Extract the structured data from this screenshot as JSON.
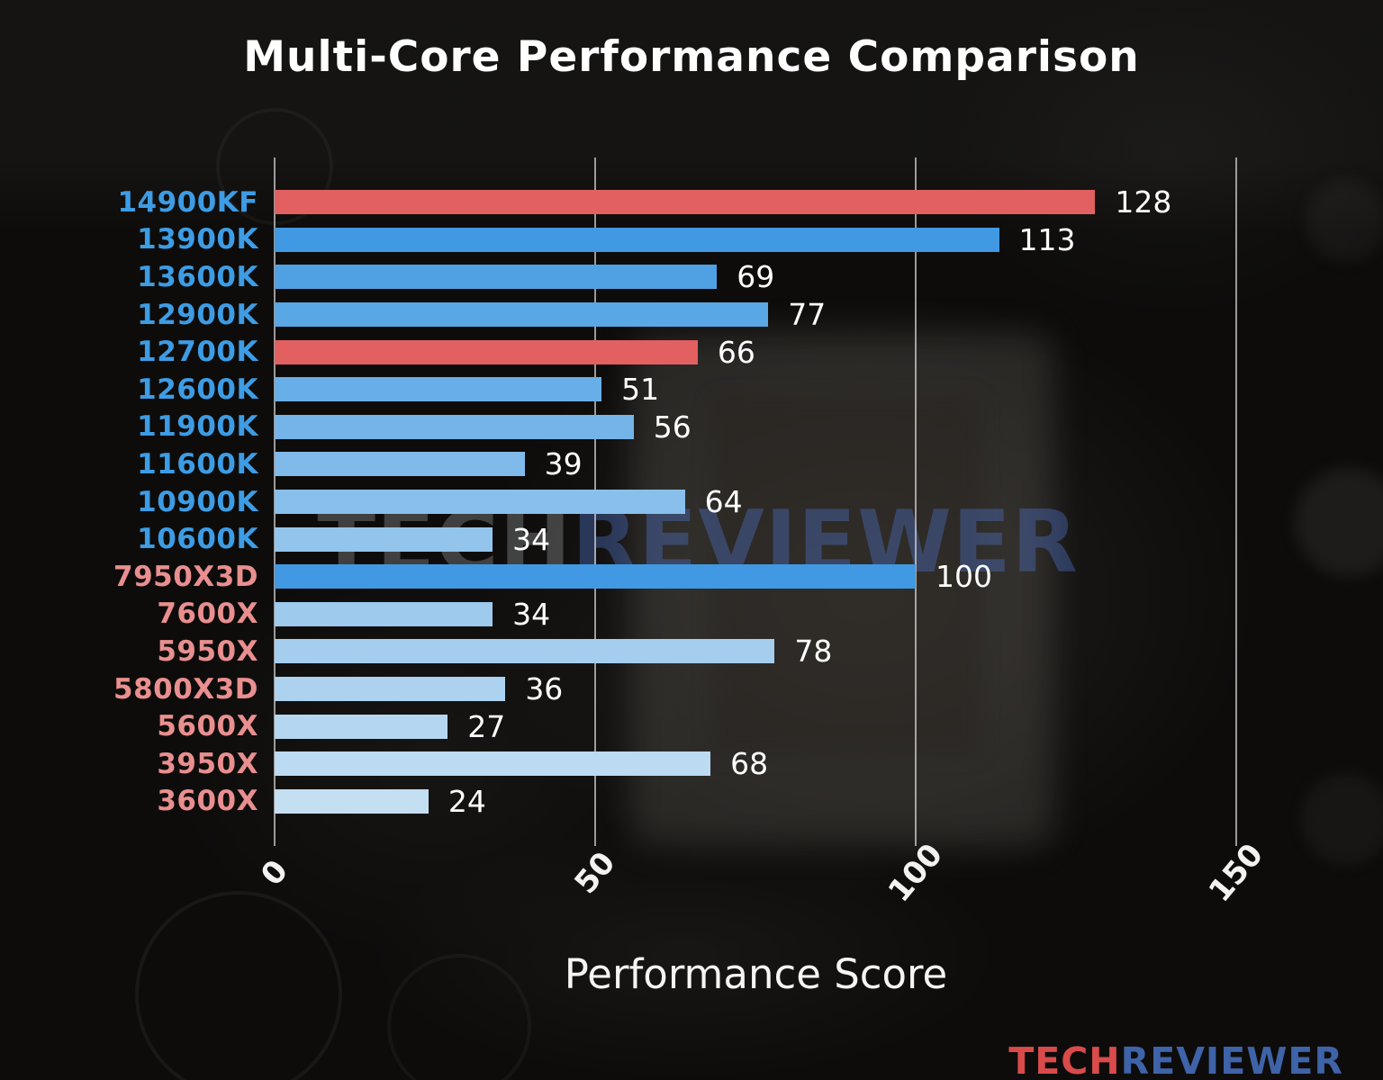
{
  "title": "Multi-Core Performance Comparison",
  "watermark": {
    "tech": "TECH",
    "reviewer": "REVIEWER"
  },
  "logo": {
    "tech": "TECH",
    "reviewer": "REVIEWER"
  },
  "chart_data": {
    "type": "bar",
    "orientation": "horizontal",
    "title": "Multi-Core Performance Comparison",
    "xlabel": "Performance Score",
    "xlim": [
      0,
      166
    ],
    "xticks": [
      0,
      50,
      100,
      150
    ],
    "grid": true,
    "categories": [
      "14900KF",
      "13900K",
      "13600K",
      "12900K",
      "12700K",
      "12600K",
      "11900K",
      "11600K",
      "10900K",
      "10600K",
      "7950X3D",
      "7600X",
      "5950X",
      "5800X3D",
      "5600X",
      "3950X",
      "3600X"
    ],
    "values": [
      128,
      113,
      69,
      77,
      66,
      51,
      56,
      39,
      64,
      34,
      100,
      34,
      78,
      36,
      27,
      68,
      24
    ],
    "intel_label_color": "#3d9ce4",
    "amd_label_color": "#e98f8f",
    "highlight_color": "#e26060",
    "rows": [
      {
        "label": "14900KF",
        "value": 128,
        "bar_color": "#e26060",
        "label_color": "#3d9ce4"
      },
      {
        "label": "13900K",
        "value": 113,
        "bar_color": "#4099e2",
        "label_color": "#3d9ce4"
      },
      {
        "label": "13600K",
        "value": 69,
        "bar_color": "#4fa1e4",
        "label_color": "#3d9ce4"
      },
      {
        "label": "12900K",
        "value": 77,
        "bar_color": "#5aa7e5",
        "label_color": "#3d9ce4"
      },
      {
        "label": "12700K",
        "value": 66,
        "bar_color": "#e26060",
        "label_color": "#3d9ce4"
      },
      {
        "label": "12600K",
        "value": 51,
        "bar_color": "#68aee7",
        "label_color": "#3d9ce4"
      },
      {
        "label": "11900K",
        "value": 56,
        "bar_color": "#74b4e8",
        "label_color": "#3d9ce4"
      },
      {
        "label": "11600K",
        "value": 39,
        "bar_color": "#7fbaea",
        "label_color": "#3d9ce4"
      },
      {
        "label": "10900K",
        "value": 64,
        "bar_color": "#89bfeb",
        "label_color": "#3d9ce4"
      },
      {
        "label": "10600K",
        "value": 34,
        "bar_color": "#93c5ec",
        "label_color": "#3d9ce4"
      },
      {
        "label": "7950X3D",
        "value": 100,
        "bar_color": "#4099e2",
        "label_color": "#e98f8f"
      },
      {
        "label": "7600X",
        "value": 34,
        "bar_color": "#9dcaed",
        "label_color": "#e98f8f"
      },
      {
        "label": "5950X",
        "value": 78,
        "bar_color": "#a5ceee",
        "label_color": "#e98f8f"
      },
      {
        "label": "5800X3D",
        "value": 36,
        "bar_color": "#add2ef",
        "label_color": "#e98f8f"
      },
      {
        "label": "5600X",
        "value": 27,
        "bar_color": "#b5d6f0",
        "label_color": "#e98f8f"
      },
      {
        "label": "3950X",
        "value": 68,
        "bar_color": "#bcdaf1",
        "label_color": "#e98f8f"
      },
      {
        "label": "3600X",
        "value": 24,
        "bar_color": "#c4def2",
        "label_color": "#e98f8f"
      }
    ]
  }
}
